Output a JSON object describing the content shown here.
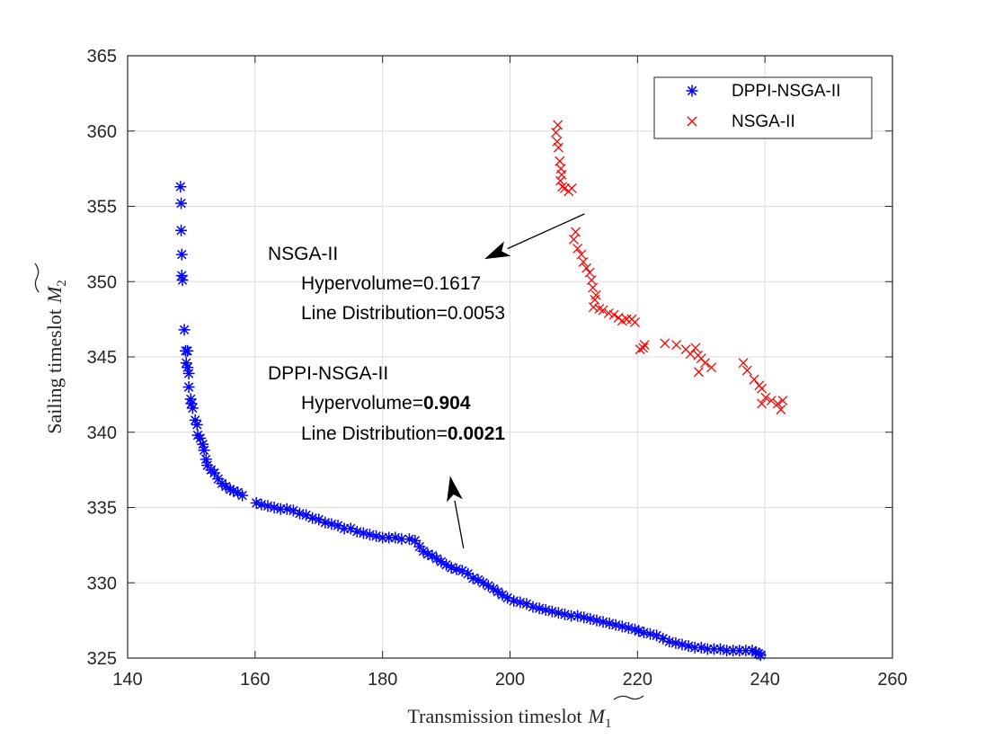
{
  "chart_data": {
    "type": "scatter",
    "xlabel_text": "Transmission timeslot",
    "xlabel_math": "M",
    "xlabel_sub": "1",
    "ylabel_text": "Sailing timeslot",
    "ylabel_math": "M",
    "ylabel_sub": "2",
    "xlim": [
      140,
      260
    ],
    "ylim": [
      325,
      365
    ],
    "xticks": [
      140,
      160,
      180,
      200,
      220,
      240,
      260
    ],
    "yticks": [
      325,
      330,
      335,
      340,
      345,
      350,
      355,
      360,
      365
    ],
    "grid": true,
    "legend_position": "top-right",
    "series": [
      {
        "name": "DPPI-NSGA-II",
        "color": "#0000ff",
        "marker": "asterisk",
        "points": [
          [
            148.3,
            356.3
          ],
          [
            148.4,
            355.2
          ],
          [
            148.4,
            353.4
          ],
          [
            148.5,
            351.8
          ],
          [
            148.5,
            350.4
          ],
          [
            148.6,
            350.1
          ],
          [
            148.9,
            346.8
          ],
          [
            149.1,
            345.4
          ],
          [
            149.4,
            345.4
          ],
          [
            149.2,
            344.6
          ],
          [
            149.4,
            344.3
          ],
          [
            149.6,
            343.9
          ],
          [
            149.6,
            343.0
          ],
          [
            149.9,
            342.2
          ],
          [
            150.0,
            341.9
          ],
          [
            150.2,
            341.6
          ],
          [
            150.6,
            340.8
          ],
          [
            150.9,
            340.5
          ],
          [
            151.0,
            339.8
          ],
          [
            151.4,
            339.6
          ],
          [
            151.8,
            339.2
          ],
          [
            152.0,
            338.8
          ],
          [
            152.3,
            338.2
          ],
          [
            152.5,
            337.8
          ],
          [
            153.1,
            337.5
          ],
          [
            153.6,
            337.3
          ],
          [
            154.2,
            336.9
          ],
          [
            154.8,
            336.6
          ],
          [
            155.4,
            336.4
          ],
          [
            156.1,
            336.2
          ],
          [
            156.6,
            336.1
          ],
          [
            157.3,
            336.0
          ],
          [
            158.0,
            335.8
          ],
          [
            160.2,
            335.3
          ],
          [
            161.0,
            335.2
          ],
          [
            162.0,
            335.1
          ],
          [
            163.0,
            335.0
          ],
          [
            164.0,
            334.9
          ],
          [
            165.0,
            334.9
          ],
          [
            166.0,
            334.8
          ],
          [
            167.0,
            334.6
          ],
          [
            168.0,
            334.5
          ],
          [
            169.0,
            334.3
          ],
          [
            170.0,
            334.2
          ],
          [
            171.0,
            334.0
          ],
          [
            172.0,
            333.9
          ],
          [
            173.0,
            333.8
          ],
          [
            174.0,
            333.6
          ],
          [
            175.0,
            333.6
          ],
          [
            176.0,
            333.4
          ],
          [
            177.0,
            333.3
          ],
          [
            178.0,
            333.2
          ],
          [
            179.0,
            333.1
          ],
          [
            180.0,
            333.0
          ],
          [
            181.0,
            333.0
          ],
          [
            182.0,
            333.0
          ],
          [
            183.0,
            332.9
          ],
          [
            184.2,
            332.9
          ],
          [
            185.1,
            332.8
          ],
          [
            185.8,
            332.4
          ],
          [
            186.4,
            332.1
          ],
          [
            187.1,
            331.9
          ],
          [
            187.8,
            331.8
          ],
          [
            188.5,
            331.6
          ],
          [
            189.2,
            331.4
          ],
          [
            190.0,
            331.2
          ],
          [
            190.8,
            331.0
          ],
          [
            191.6,
            330.9
          ],
          [
            192.5,
            330.8
          ],
          [
            193.4,
            330.6
          ],
          [
            194.2,
            330.3
          ],
          [
            195.0,
            330.2
          ],
          [
            195.8,
            330.0
          ],
          [
            196.6,
            329.8
          ],
          [
            197.4,
            329.6
          ],
          [
            198.1,
            329.4
          ],
          [
            198.8,
            329.2
          ],
          [
            199.6,
            329.0
          ],
          [
            200.6,
            328.8
          ],
          [
            201.6,
            328.7
          ],
          [
            202.6,
            328.6
          ],
          [
            203.6,
            328.4
          ],
          [
            204.6,
            328.3
          ],
          [
            205.6,
            328.2
          ],
          [
            206.6,
            328.1
          ],
          [
            207.6,
            328.0
          ],
          [
            208.6,
            327.9
          ],
          [
            209.6,
            327.8
          ],
          [
            210.6,
            327.8
          ],
          [
            211.6,
            327.7
          ],
          [
            212.6,
            327.6
          ],
          [
            213.6,
            327.5
          ],
          [
            214.6,
            327.4
          ],
          [
            215.6,
            327.3
          ],
          [
            216.6,
            327.2
          ],
          [
            217.6,
            327.1
          ],
          [
            218.6,
            327.0
          ],
          [
            219.6,
            326.9
          ],
          [
            220.2,
            326.8
          ],
          [
            221.0,
            326.7
          ],
          [
            222.0,
            326.6
          ],
          [
            223.0,
            326.5
          ],
          [
            224.0,
            326.3
          ],
          [
            225.0,
            326.1
          ],
          [
            226.0,
            326.0
          ],
          [
            227.0,
            325.9
          ],
          [
            228.0,
            325.8
          ],
          [
            229.0,
            325.7
          ],
          [
            230.0,
            325.7
          ],
          [
            231.0,
            325.6
          ],
          [
            232.0,
            325.6
          ],
          [
            233.0,
            325.6
          ],
          [
            234.0,
            325.5
          ],
          [
            235.0,
            325.5
          ],
          [
            236.0,
            325.5
          ],
          [
            237.0,
            325.5
          ],
          [
            238.0,
            325.5
          ],
          [
            238.6,
            325.4
          ],
          [
            239.0,
            325.3
          ],
          [
            239.3,
            325.2
          ]
        ]
      },
      {
        "name": "NSGA-II",
        "color": "#ff0000",
        "marker": "x",
        "points": [
          [
            207.5,
            360.4
          ],
          [
            207.2,
            359.9
          ],
          [
            207.4,
            359.3
          ],
          [
            207.6,
            358.9
          ],
          [
            207.8,
            358.0
          ],
          [
            208.0,
            357.5
          ],
          [
            208.1,
            357.1
          ],
          [
            207.9,
            356.7
          ],
          [
            208.2,
            356.3
          ],
          [
            208.6,
            356.2
          ],
          [
            209.2,
            356.0
          ],
          [
            209.7,
            356.2
          ],
          [
            210.3,
            353.3
          ],
          [
            210.0,
            352.8
          ],
          [
            210.6,
            352.2
          ],
          [
            211.2,
            351.8
          ],
          [
            211.5,
            351.3
          ],
          [
            212.0,
            350.9
          ],
          [
            212.5,
            350.6
          ],
          [
            212.8,
            350.1
          ],
          [
            213.0,
            349.6
          ],
          [
            213.5,
            349.1
          ],
          [
            213.3,
            348.8
          ],
          [
            213.1,
            348.3
          ],
          [
            214.0,
            348.2
          ],
          [
            214.6,
            348.1
          ],
          [
            215.5,
            347.9
          ],
          [
            216.3,
            347.8
          ],
          [
            217.0,
            347.6
          ],
          [
            217.6,
            347.4
          ],
          [
            218.3,
            347.5
          ],
          [
            219.1,
            347.5
          ],
          [
            219.6,
            347.3
          ],
          [
            220.4,
            345.5
          ],
          [
            220.9,
            345.6
          ],
          [
            221.1,
            345.8
          ],
          [
            224.3,
            345.9
          ],
          [
            226.1,
            345.8
          ],
          [
            227.6,
            345.5
          ],
          [
            228.3,
            345.2
          ],
          [
            229.1,
            345.6
          ],
          [
            229.5,
            345.1
          ],
          [
            230.0,
            344.9
          ],
          [
            230.6,
            344.6
          ],
          [
            231.6,
            344.3
          ],
          [
            229.6,
            344.0
          ],
          [
            236.6,
            344.6
          ],
          [
            237.2,
            344.1
          ],
          [
            238.3,
            343.5
          ],
          [
            239.1,
            343.1
          ],
          [
            239.5,
            342.9
          ],
          [
            240.1,
            342.3
          ],
          [
            241.0,
            342.1
          ],
          [
            242.0,
            341.9
          ],
          [
            242.5,
            341.5
          ],
          [
            239.5,
            341.9
          ],
          [
            242.8,
            342.1
          ]
        ]
      }
    ],
    "annotations": [
      {
        "title": "NSGA-II",
        "hv_label": "Hypervolume=",
        "hv_value": "0.1617",
        "ld_label": "Line Distribution=",
        "ld_value": "0.0053",
        "bold_values": false
      },
      {
        "title": "DPPI-NSGA-II",
        "hv_label": "Hypervolume=",
        "hv_value": "0.904",
        "ld_label": "Line Distribution=",
        "ld_value": "0.0021",
        "bold_values": true
      }
    ],
    "arrows": [
      {
        "from": [
          211.7,
          354.5
        ],
        "to": [
          196.0,
          351.5
        ]
      },
      {
        "from": [
          192.7,
          332.3
        ],
        "to": [
          190.6,
          337.1
        ]
      }
    ]
  }
}
